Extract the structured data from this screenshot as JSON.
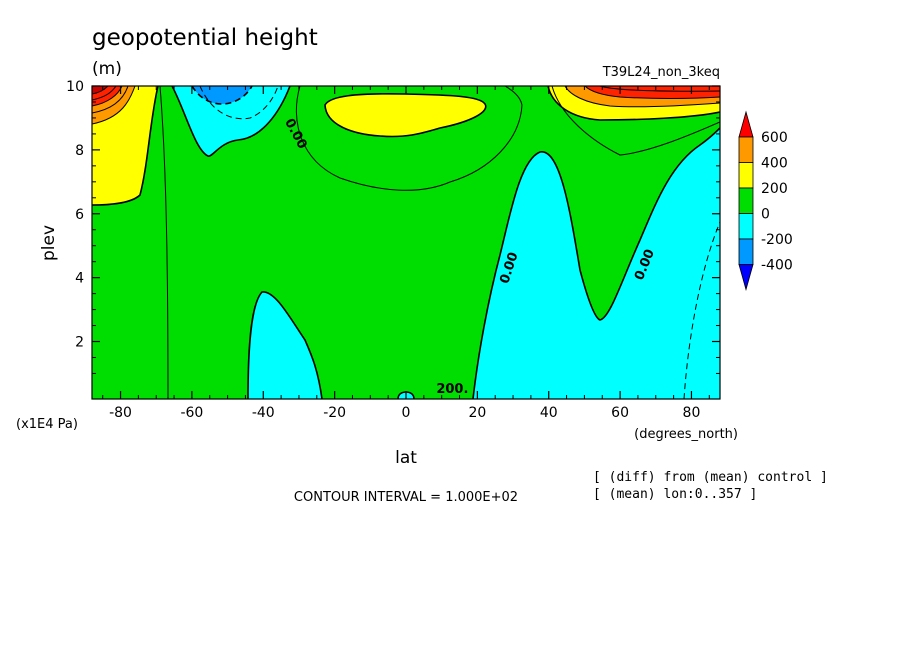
{
  "chart_data": {
    "type": "contour",
    "title": "geopotential height",
    "units": "(m)",
    "run_label": "T39L24_non_3keq",
    "xlabel": "lat",
    "x_units": "(degrees_north)",
    "ylabel": "plev",
    "y_units": "(x1E4 Pa)",
    "xlim": [
      -88,
      88
    ],
    "ylim": [
      10,
      0.2
    ],
    "x_ticks": [
      -80,
      -60,
      -40,
      -20,
      0,
      20,
      40,
      60,
      80
    ],
    "y_ticks": [
      2,
      4,
      6,
      8,
      10
    ],
    "contour_interval": "CONTOUR INTERVAL = 1.000E+02",
    "notes": [
      "[ (diff) from (mean) control ]",
      "[ (mean) lon:0..357 ]"
    ],
    "contour_labels": [
      {
        "text": "200.",
        "x": 13,
        "y": 0.5,
        "angle": 0
      },
      {
        "text": "0.00",
        "x": 29,
        "y": 4.3,
        "angle": -72
      },
      {
        "text": "0.00",
        "x": 67,
        "y": 4.4,
        "angle": -68
      },
      {
        "text": "0.00",
        "x": -31,
        "y": 8.5,
        "angle": 62
      }
    ],
    "colorbar": {
      "levels": [
        "600",
        "400",
        "200",
        "0",
        "-200",
        "-400"
      ],
      "colors": [
        "#ff0000",
        "#ff9900",
        "#ffff00",
        "#00dd00",
        "#00ffff",
        "#0099ff",
        "#0000ff"
      ]
    },
    "fill_colors": {
      "dark_red": "#c80000",
      "red": "#ff2200",
      "orange": "#ff9900",
      "yellow": "#ffff00",
      "green": "#00dd00",
      "cyan": "#00ffff",
      "blue": "#0099ff"
    }
  }
}
